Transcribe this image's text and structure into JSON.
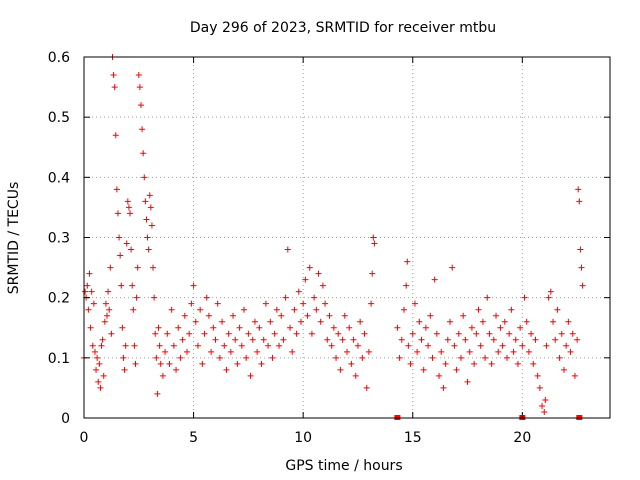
{
  "chart_data": {
    "type": "scatter",
    "title": "Day 296 of 2023, SRMTID for receiver mtbu",
    "xlabel": "GPS time / hours",
    "ylabel": "SRMTID / TECUs",
    "xlim": [
      0,
      24
    ],
    "ylim": [
      0,
      0.6
    ],
    "xticks": [
      0,
      5,
      10,
      15,
      20
    ],
    "yticks": [
      0,
      0.1,
      0.2,
      0.3,
      0.4,
      0.5,
      0.6
    ],
    "xtick_labels": [
      "0",
      "5",
      "10",
      "15",
      "20"
    ],
    "ytick_labels": [
      "0",
      "0.1",
      "0.2",
      "0.3",
      "0.4",
      "0.5",
      "0.6"
    ],
    "grid": true,
    "marker": "+",
    "color": "#ff0000",
    "data_gap_hours": [
      13.3,
      14.3
    ],
    "series": [
      {
        "name": "SRMTID",
        "points": [
          [
            0.0,
            0.1
          ],
          [
            0.05,
            0.21
          ],
          [
            0.1,
            0.2
          ],
          [
            0.15,
            0.22
          ],
          [
            0.2,
            0.18
          ],
          [
            0.25,
            0.24
          ],
          [
            0.3,
            0.15
          ],
          [
            0.35,
            0.21
          ],
          [
            0.4,
            0.12
          ],
          [
            0.45,
            0.19
          ],
          [
            0.5,
            0.11
          ],
          [
            0.55,
            0.08
          ],
          [
            0.6,
            0.1
          ],
          [
            0.65,
            0.06
          ],
          [
            0.7,
            0.09
          ],
          [
            0.75,
            0.05
          ],
          [
            0.8,
            0.12
          ],
          [
            0.85,
            0.13
          ],
          [
            0.9,
            0.07
          ],
          [
            0.95,
            0.16
          ],
          [
            1.0,
            0.19
          ],
          [
            1.05,
            0.17
          ],
          [
            1.1,
            0.21
          ],
          [
            1.15,
            0.18
          ],
          [
            1.2,
            0.25
          ],
          [
            1.25,
            0.14
          ],
          [
            1.3,
            0.6
          ],
          [
            1.35,
            0.57
          ],
          [
            1.4,
            0.55
          ],
          [
            1.45,
            0.47
          ],
          [
            1.5,
            0.38
          ],
          [
            1.55,
            0.34
          ],
          [
            1.6,
            0.3
          ],
          [
            1.65,
            0.27
          ],
          [
            1.7,
            0.22
          ],
          [
            1.75,
            0.15
          ],
          [
            1.8,
            0.1
          ],
          [
            1.85,
            0.08
          ],
          [
            1.9,
            0.12
          ],
          [
            1.95,
            0.29
          ],
          [
            2.0,
            0.36
          ],
          [
            2.05,
            0.35
          ],
          [
            2.1,
            0.34
          ],
          [
            2.15,
            0.28
          ],
          [
            2.2,
            0.22
          ],
          [
            2.25,
            0.18
          ],
          [
            2.3,
            0.12
          ],
          [
            2.35,
            0.09
          ],
          [
            2.4,
            0.2
          ],
          [
            2.45,
            0.25
          ],
          [
            2.5,
            0.57
          ],
          [
            2.55,
            0.55
          ],
          [
            2.6,
            0.52
          ],
          [
            2.65,
            0.48
          ],
          [
            2.7,
            0.44
          ],
          [
            2.75,
            0.4
          ],
          [
            2.8,
            0.36
          ],
          [
            2.85,
            0.33
          ],
          [
            2.9,
            0.3
          ],
          [
            2.95,
            0.28
          ],
          [
            3.0,
            0.37
          ],
          [
            3.05,
            0.35
          ],
          [
            3.1,
            0.32
          ],
          [
            3.15,
            0.25
          ],
          [
            3.2,
            0.2
          ],
          [
            3.25,
            0.14
          ],
          [
            3.3,
            0.1
          ],
          [
            3.35,
            0.04
          ],
          [
            3.4,
            0.15
          ],
          [
            3.45,
            0.12
          ],
          [
            3.5,
            0.09
          ],
          [
            3.6,
            0.07
          ],
          [
            3.7,
            0.11
          ],
          [
            3.8,
            0.14
          ],
          [
            3.9,
            0.09
          ],
          [
            4.0,
            0.18
          ],
          [
            4.1,
            0.12
          ],
          [
            4.2,
            0.08
          ],
          [
            4.3,
            0.15
          ],
          [
            4.4,
            0.1
          ],
          [
            4.5,
            0.13
          ],
          [
            4.6,
            0.17
          ],
          [
            4.7,
            0.11
          ],
          [
            4.8,
            0.14
          ],
          [
            4.9,
            0.19
          ],
          [
            5.0,
            0.22
          ],
          [
            5.1,
            0.16
          ],
          [
            5.2,
            0.12
          ],
          [
            5.3,
            0.18
          ],
          [
            5.4,
            0.09
          ],
          [
            5.5,
            0.14
          ],
          [
            5.6,
            0.2
          ],
          [
            5.7,
            0.17
          ],
          [
            5.8,
            0.11
          ],
          [
            5.9,
            0.15
          ],
          [
            6.0,
            0.13
          ],
          [
            6.1,
            0.19
          ],
          [
            6.2,
            0.1
          ],
          [
            6.3,
            0.16
          ],
          [
            6.4,
            0.12
          ],
          [
            6.5,
            0.08
          ],
          [
            6.6,
            0.14
          ],
          [
            6.7,
            0.11
          ],
          [
            6.8,
            0.17
          ],
          [
            6.9,
            0.13
          ],
          [
            7.0,
            0.09
          ],
          [
            7.1,
            0.15
          ],
          [
            7.2,
            0.12
          ],
          [
            7.3,
            0.18
          ],
          [
            7.4,
            0.1
          ],
          [
            7.5,
            0.14
          ],
          [
            7.6,
            0.07
          ],
          [
            7.7,
            0.13
          ],
          [
            7.8,
            0.16
          ],
          [
            7.9,
            0.11
          ],
          [
            8.0,
            0.15
          ],
          [
            8.1,
            0.09
          ],
          [
            8.2,
            0.13
          ],
          [
            8.3,
            0.19
          ],
          [
            8.4,
            0.12
          ],
          [
            8.5,
            0.16
          ],
          [
            8.6,
            0.1
          ],
          [
            8.7,
            0.14
          ],
          [
            8.8,
            0.18
          ],
          [
            8.9,
            0.12
          ],
          [
            9.0,
            0.17
          ],
          [
            9.1,
            0.13
          ],
          [
            9.2,
            0.2
          ],
          [
            9.3,
            0.28
          ],
          [
            9.4,
            0.15
          ],
          [
            9.5,
            0.11
          ],
          [
            9.6,
            0.18
          ],
          [
            9.7,
            0.14
          ],
          [
            9.8,
            0.21
          ],
          [
            9.9,
            0.16
          ],
          [
            10.0,
            0.19
          ],
          [
            10.1,
            0.23
          ],
          [
            10.2,
            0.17
          ],
          [
            10.3,
            0.25
          ],
          [
            10.4,
            0.14
          ],
          [
            10.5,
            0.2
          ],
          [
            10.6,
            0.18
          ],
          [
            10.7,
            0.24
          ],
          [
            10.8,
            0.16
          ],
          [
            10.9,
            0.22
          ],
          [
            11.0,
            0.19
          ],
          [
            11.1,
            0.13
          ],
          [
            11.2,
            0.17
          ],
          [
            11.3,
            0.12
          ],
          [
            11.4,
            0.15
          ],
          [
            11.5,
            0.1
          ],
          [
            11.6,
            0.14
          ],
          [
            11.7,
            0.08
          ],
          [
            11.8,
            0.13
          ],
          [
            11.9,
            0.17
          ],
          [
            12.0,
            0.11
          ],
          [
            12.1,
            0.15
          ],
          [
            12.2,
            0.09
          ],
          [
            12.3,
            0.13
          ],
          [
            12.4,
            0.07
          ],
          [
            12.5,
            0.12
          ],
          [
            12.6,
            0.16
          ],
          [
            12.7,
            0.1
          ],
          [
            12.8,
            0.14
          ],
          [
            12.9,
            0.05
          ],
          [
            13.0,
            0.11
          ],
          [
            13.1,
            0.19
          ],
          [
            13.15,
            0.24
          ],
          [
            13.2,
            0.3
          ],
          [
            13.25,
            0.29
          ],
          [
            14.3,
            0.15
          ],
          [
            14.4,
            0.1
          ],
          [
            14.5,
            0.13
          ],
          [
            14.6,
            0.18
          ],
          [
            14.7,
            0.22
          ],
          [
            14.75,
            0.26
          ],
          [
            14.8,
            0.12
          ],
          [
            14.9,
            0.09
          ],
          [
            15.0,
            0.14
          ],
          [
            15.1,
            0.19
          ],
          [
            15.2,
            0.11
          ],
          [
            15.3,
            0.16
          ],
          [
            15.4,
            0.13
          ],
          [
            15.5,
            0.08
          ],
          [
            15.6,
            0.15
          ],
          [
            15.7,
            0.12
          ],
          [
            15.8,
            0.17
          ],
          [
            15.9,
            0.1
          ],
          [
            16.0,
            0.23
          ],
          [
            16.1,
            0.14
          ],
          [
            16.2,
            0.07
          ],
          [
            16.3,
            0.11
          ],
          [
            16.4,
            0.05
          ],
          [
            16.5,
            0.09
          ],
          [
            16.6,
            0.13
          ],
          [
            16.7,
            0.16
          ],
          [
            16.8,
            0.25
          ],
          [
            16.9,
            0.12
          ],
          [
            17.0,
            0.08
          ],
          [
            17.1,
            0.14
          ],
          [
            17.2,
            0.1
          ],
          [
            17.3,
            0.17
          ],
          [
            17.4,
            0.13
          ],
          [
            17.5,
            0.06
          ],
          [
            17.6,
            0.11
          ],
          [
            17.7,
            0.15
          ],
          [
            17.8,
            0.09
          ],
          [
            17.9,
            0.14
          ],
          [
            18.0,
            0.18
          ],
          [
            18.1,
            0.12
          ],
          [
            18.2,
            0.16
          ],
          [
            18.3,
            0.1
          ],
          [
            18.4,
            0.2
          ],
          [
            18.5,
            0.14
          ],
          [
            18.6,
            0.09
          ],
          [
            18.7,
            0.13
          ],
          [
            18.8,
            0.17
          ],
          [
            18.9,
            0.11
          ],
          [
            19.0,
            0.15
          ],
          [
            19.1,
            0.12
          ],
          [
            19.2,
            0.16
          ],
          [
            19.3,
            0.1
          ],
          [
            19.4,
            0.14
          ],
          [
            19.5,
            0.18
          ],
          [
            19.6,
            0.11
          ],
          [
            19.7,
            0.13
          ],
          [
            19.8,
            0.09
          ],
          [
            19.9,
            0.15
          ],
          [
            20.0,
            0.12
          ],
          [
            20.1,
            0.2
          ],
          [
            20.2,
            0.16
          ],
          [
            20.3,
            0.11
          ],
          [
            20.4,
            0.14
          ],
          [
            20.5,
            0.09
          ],
          [
            20.6,
            0.13
          ],
          [
            20.7,
            0.07
          ],
          [
            20.8,
            0.05
          ],
          [
            20.9,
            0.02
          ],
          [
            21.0,
            0.01
          ],
          [
            21.05,
            0.03
          ],
          [
            21.1,
            0.12
          ],
          [
            21.2,
            0.2
          ],
          [
            21.3,
            0.21
          ],
          [
            21.4,
            0.16
          ],
          [
            21.5,
            0.13
          ],
          [
            21.6,
            0.18
          ],
          [
            21.7,
            0.1
          ],
          [
            21.8,
            0.14
          ],
          [
            21.9,
            0.08
          ],
          [
            22.0,
            0.12
          ],
          [
            22.1,
            0.16
          ],
          [
            22.2,
            0.11
          ],
          [
            22.3,
            0.14
          ],
          [
            22.4,
            0.07
          ],
          [
            22.5,
            0.13
          ],
          [
            22.55,
            0.38
          ],
          [
            22.6,
            0.36
          ],
          [
            22.65,
            0.28
          ],
          [
            22.7,
            0.25
          ],
          [
            22.75,
            0.22
          ]
        ]
      }
    ],
    "zero_markers": [
      14.3,
      20.0,
      22.6
    ]
  }
}
